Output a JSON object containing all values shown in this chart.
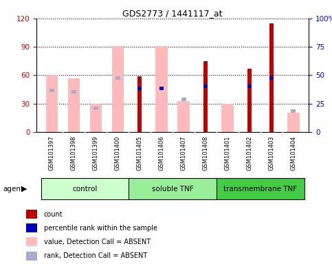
{
  "title": "GDS2773 / 1441117_at",
  "samples": [
    "GSM101397",
    "GSM101398",
    "GSM101399",
    "GSM101400",
    "GSM101405",
    "GSM101406",
    "GSM101407",
    "GSM101408",
    "GSM101401",
    "GSM101402",
    "GSM101403",
    "GSM101404"
  ],
  "groups": [
    {
      "label": "control",
      "indices": [
        0,
        1,
        2,
        3
      ],
      "color": "#ccffcc"
    },
    {
      "label": "soluble TNF",
      "indices": [
        4,
        5,
        6,
        7
      ],
      "color": "#99ee99"
    },
    {
      "label": "transmembrane TNF",
      "indices": [
        8,
        9,
        10,
        11
      ],
      "color": "#44cc44"
    }
  ],
  "pink_bars": [
    60,
    57,
    30,
    91,
    0,
    91,
    33,
    0,
    30,
    0,
    0,
    20
  ],
  "red_bars": [
    0,
    0,
    0,
    0,
    59,
    0,
    0,
    75,
    0,
    67,
    115,
    0
  ],
  "blue_tops": [
    0,
    0,
    0,
    0,
    48,
    48,
    0,
    50,
    0,
    50,
    59,
    0
  ],
  "light_blue_tops": [
    46,
    44,
    27,
    59,
    0,
    0,
    36,
    0,
    0,
    0,
    0,
    24
  ],
  "ylim_left": [
    0,
    120
  ],
  "ylim_right": [
    0,
    100
  ],
  "yticks_left": [
    0,
    30,
    60,
    90,
    120
  ],
  "yticks_right": [
    0,
    25,
    50,
    75,
    100
  ],
  "colors": {
    "red": "#bb0000",
    "blue": "#0000bb",
    "pink": "#ffbbbb",
    "light_blue": "#aaaacc",
    "tick_left": "#cc0000",
    "tick_right": "#0000cc",
    "plot_bg": "#ffffff",
    "xtick_bg": "#cccccc"
  },
  "legend_items": [
    {
      "color": "#bb0000",
      "label": "count"
    },
    {
      "color": "#0000bb",
      "label": "percentile rank within the sample"
    },
    {
      "color": "#ffbbbb",
      "label": "value, Detection Call = ABSENT"
    },
    {
      "color": "#aaaacc",
      "label": "rank, Detection Call = ABSENT"
    }
  ]
}
